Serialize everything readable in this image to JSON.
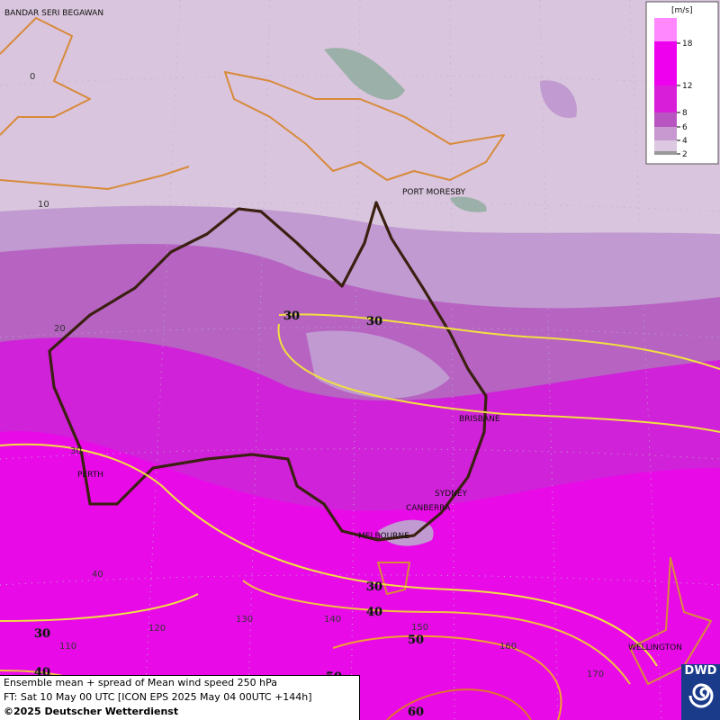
{
  "legend": {
    "unit": "[m/s]",
    "ticks": [
      "18",
      "12",
      "8",
      "6",
      "4",
      "2"
    ]
  },
  "cities": [
    "BANDAR SERI BEGAWAN",
    "PORT MORESBY",
    "BRISBANE",
    "PERTH",
    "SYDNEY",
    "CANBERRA",
    "MELBOURNE",
    "WELLINGTON"
  ],
  "latitudes": [
    "0",
    "10",
    "20",
    "30",
    "40"
  ],
  "longitudes": [
    "110",
    "120",
    "130",
    "140",
    "150",
    "160",
    "170"
  ],
  "contour_labels": [
    "30",
    "30",
    "30",
    "30",
    "40",
    "40",
    "50",
    "50",
    "60"
  ],
  "footer": {
    "line1": "Ensemble mean + spread of Mean wind speed 250 hPa",
    "line2": "FT: Sat 10 May 00 UTC [ICON EPS 2025 May 04 00UTC +144h]",
    "line3": "©2025 Deutscher Wetterdienst"
  },
  "logo": "DWD"
}
